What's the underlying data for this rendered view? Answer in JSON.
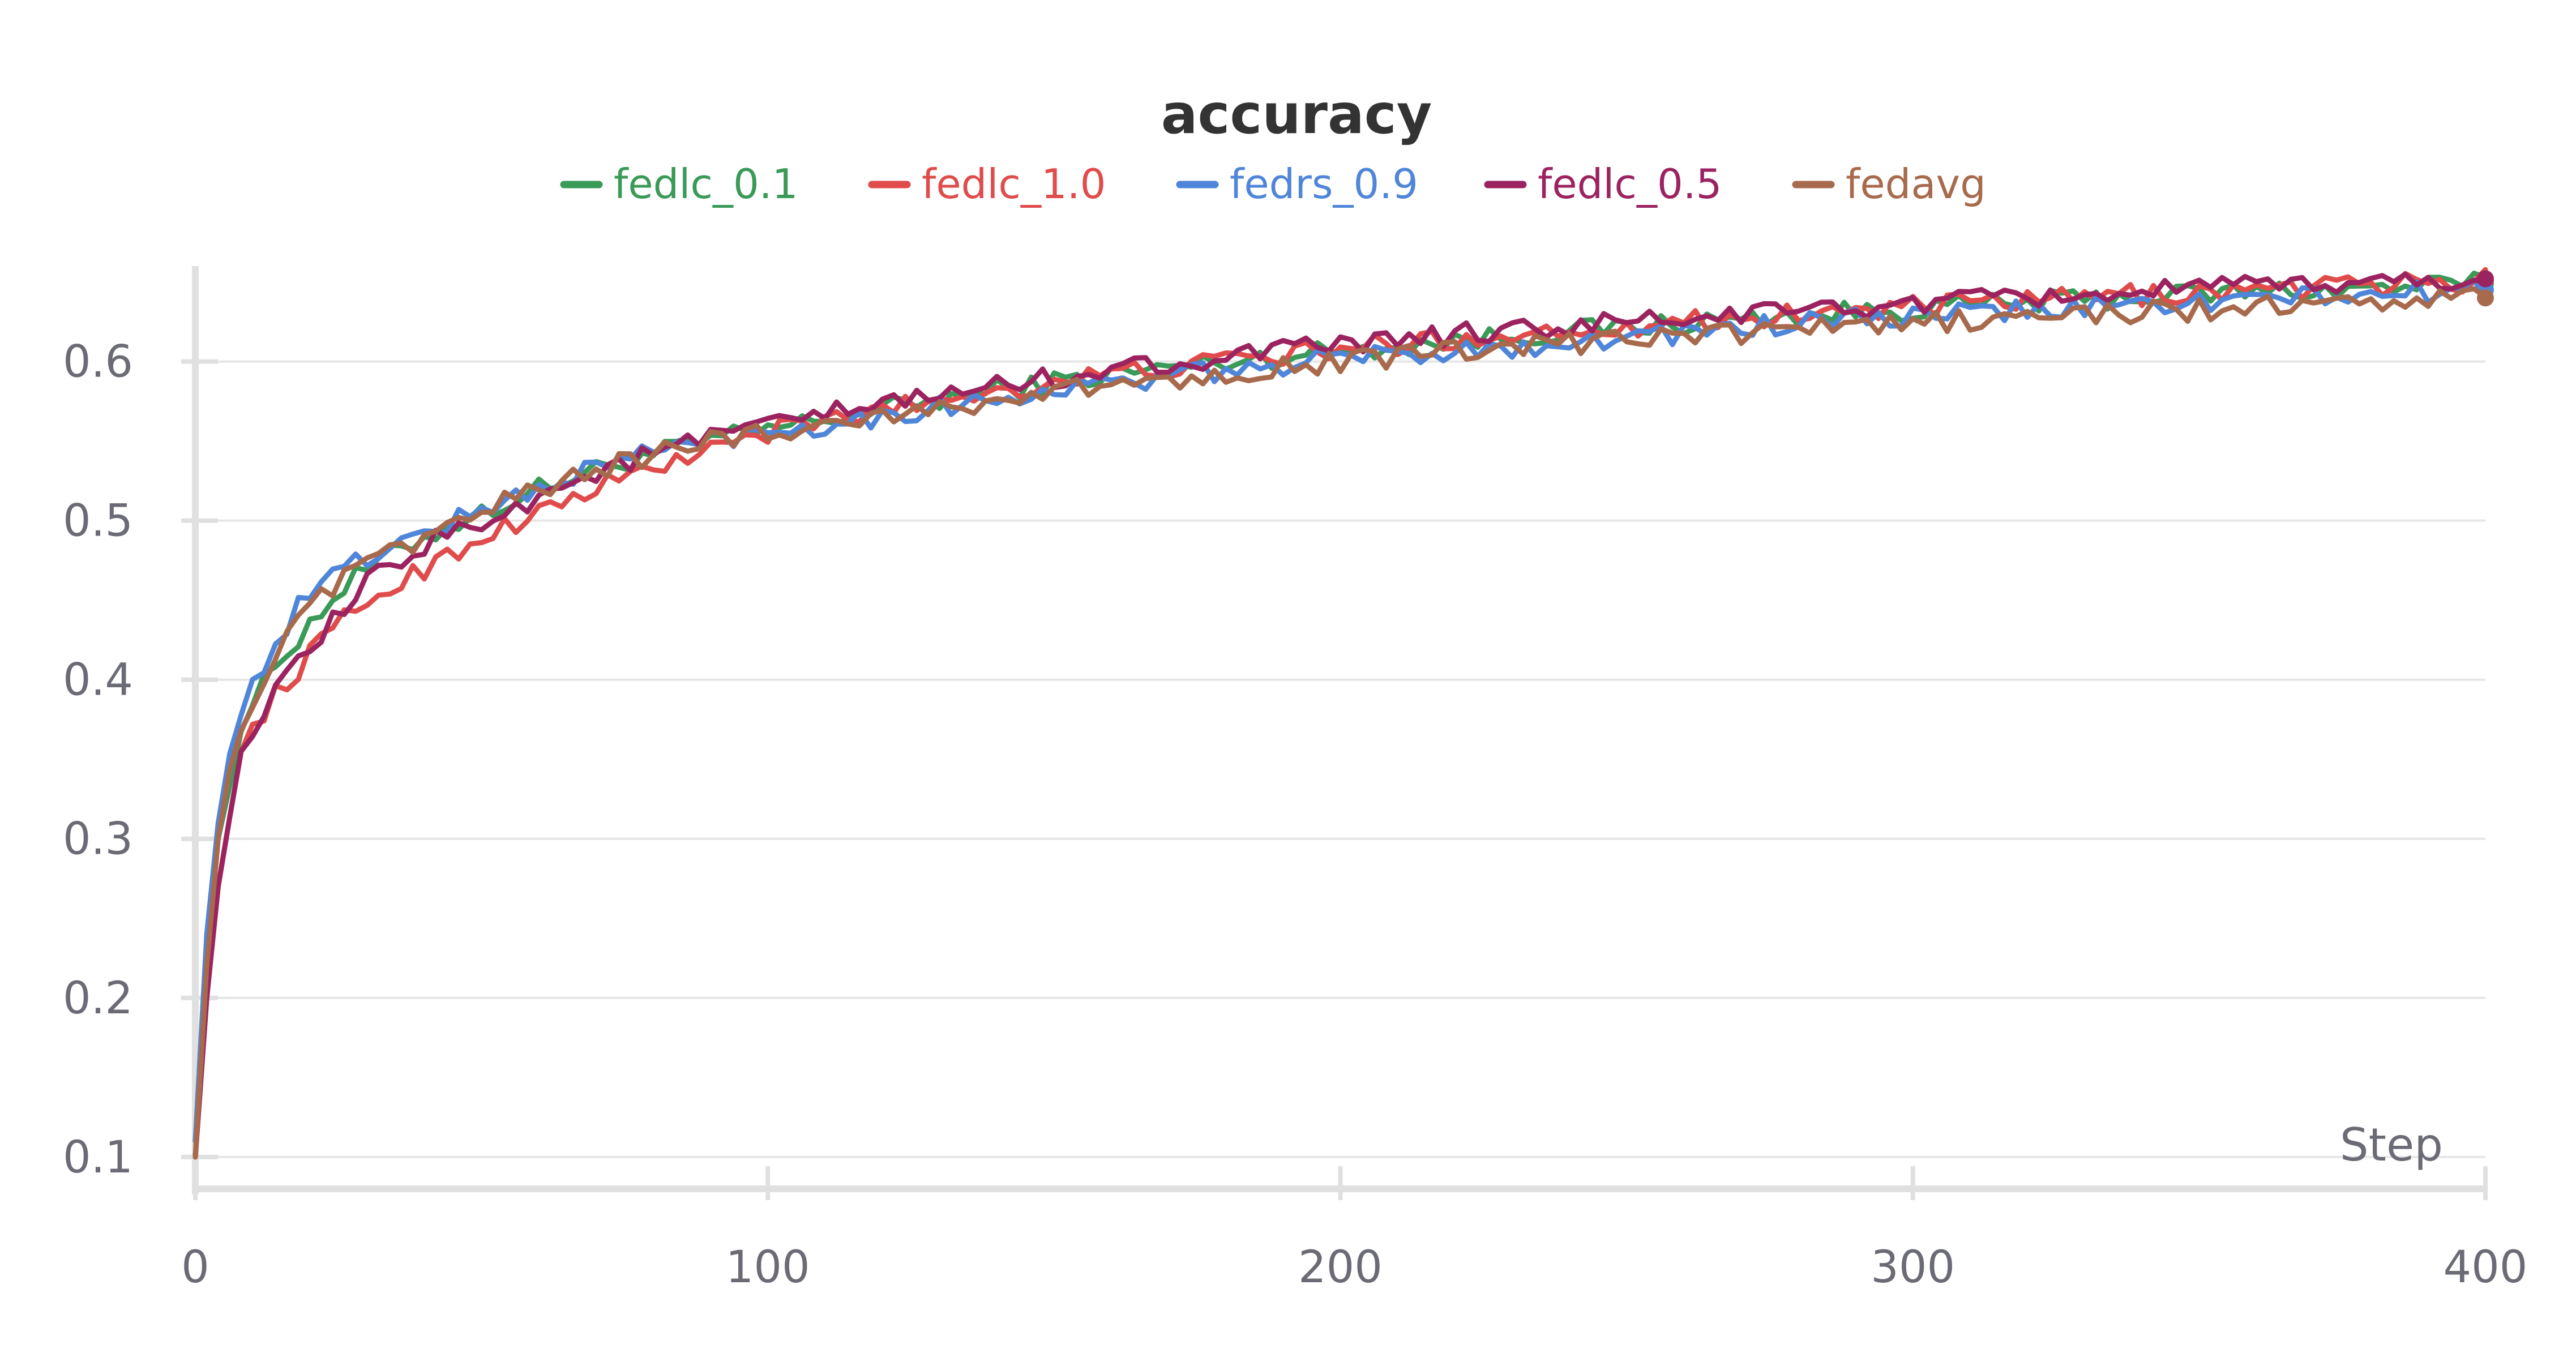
{
  "chart_data": {
    "type": "line",
    "title": "accuracy",
    "xlabel": "Step",
    "ylabel": "",
    "xlim": [
      0,
      400
    ],
    "ylim": [
      0.08,
      0.66
    ],
    "xticks": [
      0,
      100,
      200,
      300,
      400
    ],
    "yticks": [
      0.1,
      0.2,
      0.3,
      0.4,
      0.5,
      0.6
    ],
    "grid": true,
    "legend_position": "top",
    "x": [
      0,
      2,
      4,
      6,
      8,
      10,
      15,
      20,
      25,
      30,
      40,
      50,
      60,
      70,
      80,
      90,
      100,
      120,
      140,
      160,
      180,
      200,
      220,
      240,
      260,
      280,
      300,
      320,
      340,
      360,
      380,
      400
    ],
    "series": [
      {
        "name": "fedlc_0.1",
        "color": "#3a9a58",
        "values": [
          0.1,
          0.23,
          0.3,
          0.34,
          0.37,
          0.385,
          0.415,
          0.435,
          0.455,
          0.47,
          0.49,
          0.505,
          0.52,
          0.532,
          0.542,
          0.55,
          0.557,
          0.57,
          0.582,
          0.592,
          0.6,
          0.607,
          0.613,
          0.619,
          0.624,
          0.629,
          0.633,
          0.637,
          0.641,
          0.644,
          0.646,
          0.649
        ]
      },
      {
        "name": "fedlc_1.0",
        "color": "#e04b4b",
        "values": [
          0.1,
          0.2,
          0.27,
          0.32,
          0.35,
          0.37,
          0.395,
          0.415,
          0.435,
          0.45,
          0.47,
          0.49,
          0.505,
          0.52,
          0.533,
          0.545,
          0.555,
          0.57,
          0.582,
          0.592,
          0.6,
          0.608,
          0.614,
          0.62,
          0.625,
          0.63,
          0.634,
          0.638,
          0.642,
          0.645,
          0.648,
          0.651
        ]
      },
      {
        "name": "fedrs_0.9",
        "color": "#4f86d9",
        "values": [
          0.11,
          0.24,
          0.31,
          0.36,
          0.38,
          0.395,
          0.43,
          0.455,
          0.468,
          0.477,
          0.493,
          0.506,
          0.52,
          0.534,
          0.544,
          0.551,
          0.556,
          0.566,
          0.577,
          0.586,
          0.594,
          0.602,
          0.607,
          0.612,
          0.618,
          0.624,
          0.628,
          0.632,
          0.636,
          0.639,
          0.642,
          0.645
        ]
      },
      {
        "name": "fedlc_0.5",
        "color": "#9b2360",
        "values": [
          0.1,
          0.2,
          0.27,
          0.32,
          0.35,
          0.37,
          0.395,
          0.418,
          0.44,
          0.46,
          0.485,
          0.5,
          0.515,
          0.53,
          0.542,
          0.552,
          0.56,
          0.573,
          0.585,
          0.595,
          0.603,
          0.61,
          0.617,
          0.622,
          0.627,
          0.632,
          0.636,
          0.64,
          0.644,
          0.647,
          0.65,
          0.652
        ]
      },
      {
        "name": "fedavg",
        "color": "#a86a4c",
        "values": [
          0.1,
          0.22,
          0.3,
          0.35,
          0.37,
          0.385,
          0.42,
          0.445,
          0.46,
          0.472,
          0.49,
          0.505,
          0.52,
          0.532,
          0.542,
          0.55,
          0.556,
          0.566,
          0.576,
          0.585,
          0.593,
          0.6,
          0.606,
          0.611,
          0.616,
          0.62,
          0.624,
          0.628,
          0.631,
          0.634,
          0.637,
          0.64
        ]
      }
    ]
  }
}
